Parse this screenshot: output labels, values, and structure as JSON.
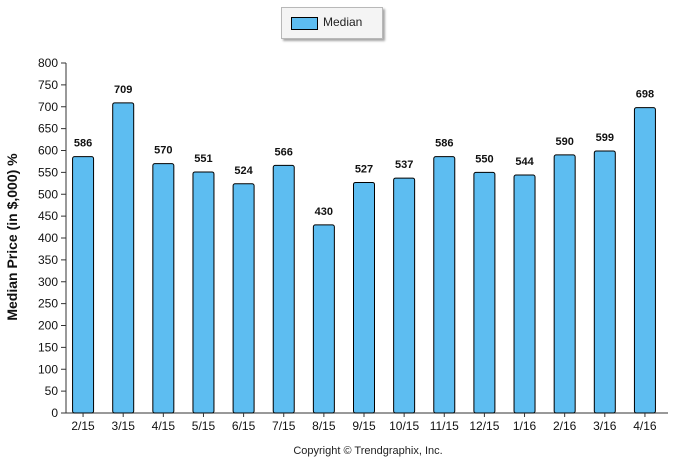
{
  "chart_data": {
    "type": "bar",
    "categories": [
      "2/15",
      "3/15",
      "4/15",
      "5/15",
      "6/15",
      "7/15",
      "8/15",
      "9/15",
      "10/15",
      "11/15",
      "12/15",
      "1/16",
      "2/16",
      "3/16",
      "4/16"
    ],
    "series": [
      {
        "name": "Median",
        "values": [
          586,
          709,
          570,
          551,
          524,
          566,
          430,
          527,
          537,
          586,
          550,
          544,
          590,
          599,
          698
        ]
      }
    ],
    "ylabel": "Median Price (in $,000) %",
    "ylim": [
      0,
      800
    ],
    "ytick_step": 50,
    "grid": false,
    "legend_placement": "top-center",
    "bar_color": "#5dbdf1",
    "copyright": "Copyright © Trendgraphix, Inc."
  }
}
